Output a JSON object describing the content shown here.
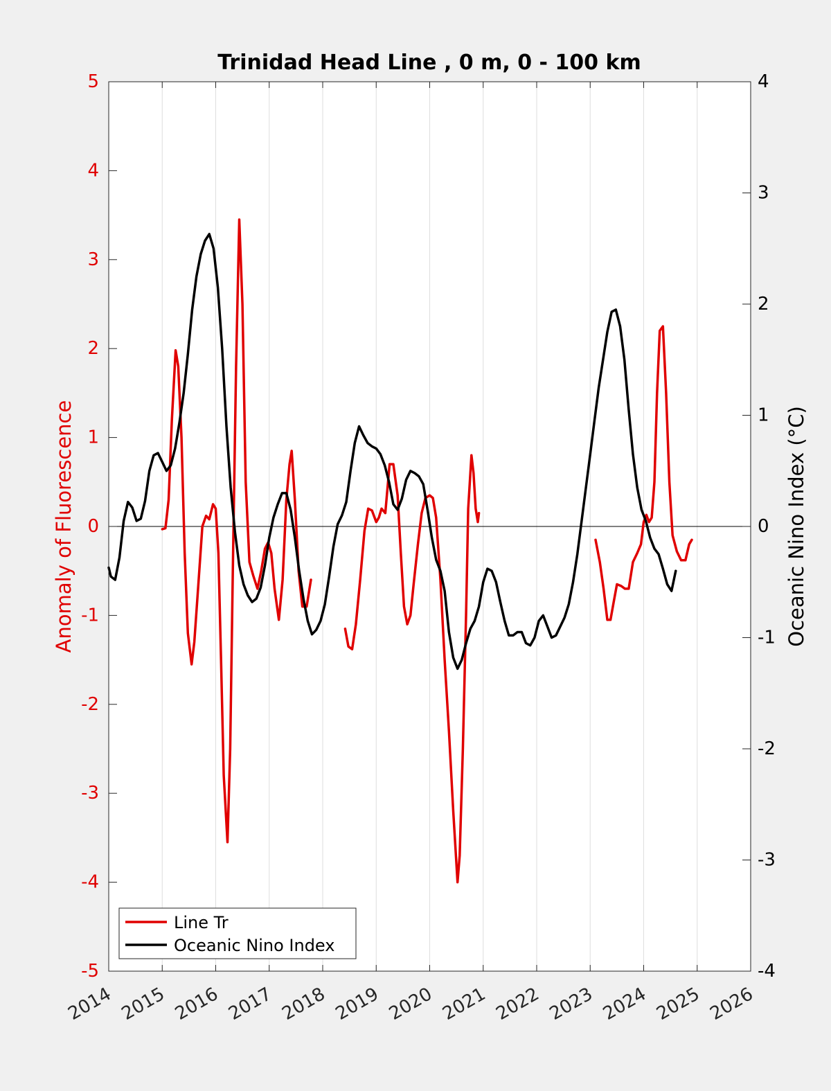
{
  "chart_data": {
    "type": "line",
    "title": "Trinidad Head Line , 0 m, 0 - 100 km",
    "xlabel": "",
    "ylabel_left": "Anomaly of Fluorescence",
    "ylabel_right": "Oceanic Nino Index (°C)",
    "xlim": [
      2014,
      2026
    ],
    "ylim_left": [
      -5,
      5
    ],
    "ylim_right": [
      -4,
      4
    ],
    "x_ticks": [
      "2014",
      "2015",
      "2016",
      "2017",
      "2018",
      "2019",
      "2020",
      "2021",
      "2022",
      "2023",
      "2024",
      "2025",
      "2026"
    ],
    "y_ticks_left": [
      "-5",
      "-4",
      "-3",
      "-2",
      "-1",
      "0",
      "1",
      "2",
      "3",
      "4",
      "5"
    ],
    "y_ticks_right": [
      "-4",
      "-3",
      "-2",
      "-1",
      "0",
      "1",
      "2",
      "3",
      "4"
    ],
    "x_grid": true,
    "zero_line": true,
    "legend": {
      "placement": "bottom-left",
      "entries": [
        "Line Tr",
        "Oceanic Nino Index"
      ]
    },
    "colors": {
      "line_tr": "#e00000",
      "oni": "#000000",
      "left_axis": "#e00000",
      "right_axis": "#000000"
    },
    "series": [
      {
        "name": "Line Tr",
        "axis": "left",
        "segments": [
          [
            [
              2015.0,
              -0.03
            ],
            [
              2015.06,
              -0.02
            ],
            [
              2015.12,
              0.3
            ],
            [
              2015.18,
              1.2
            ],
            [
              2015.25,
              1.98
            ],
            [
              2015.3,
              1.8
            ],
            [
              2015.36,
              1.0
            ],
            [
              2015.42,
              -0.3
            ],
            [
              2015.48,
              -1.2
            ],
            [
              2015.55,
              -1.55
            ],
            [
              2015.6,
              -1.3
            ],
            [
              2015.67,
              -0.7
            ],
            [
              2015.75,
              0.0
            ],
            [
              2015.82,
              0.12
            ],
            [
              2015.88,
              0.08
            ],
            [
              2015.95,
              0.25
            ],
            [
              2016.0,
              0.2
            ],
            [
              2016.05,
              -0.3
            ],
            [
              2016.1,
              -1.5
            ],
            [
              2016.15,
              -2.8
            ],
            [
              2016.22,
              -3.55
            ],
            [
              2016.27,
              -2.5
            ],
            [
              2016.32,
              -0.5
            ],
            [
              2016.38,
              1.8
            ],
            [
              2016.44,
              3.45
            ],
            [
              2016.5,
              2.5
            ],
            [
              2016.56,
              0.5
            ],
            [
              2016.63,
              -0.4
            ],
            [
              2016.7,
              -0.55
            ],
            [
              2016.78,
              -0.7
            ],
            [
              2016.85,
              -0.5
            ],
            [
              2016.92,
              -0.25
            ],
            [
              2016.98,
              -0.18
            ],
            [
              2017.04,
              -0.3
            ],
            [
              2017.1,
              -0.7
            ],
            [
              2017.18,
              -1.05
            ],
            [
              2017.25,
              -0.6
            ],
            [
              2017.32,
              0.3
            ],
            [
              2017.38,
              0.7
            ],
            [
              2017.42,
              0.85
            ],
            [
              2017.48,
              0.3
            ],
            [
              2017.55,
              -0.5
            ],
            [
              2017.62,
              -0.9
            ],
            [
              2017.7,
              -0.9
            ],
            [
              2017.78,
              -0.6
            ]
          ],
          [
            [
              2018.42,
              -1.15
            ],
            [
              2018.48,
              -1.35
            ],
            [
              2018.55,
              -1.38
            ],
            [
              2018.62,
              -1.1
            ],
            [
              2018.7,
              -0.6
            ],
            [
              2018.78,
              -0.05
            ],
            [
              2018.85,
              0.2
            ],
            [
              2018.92,
              0.18
            ],
            [
              2019.0,
              0.05
            ],
            [
              2019.05,
              0.1
            ],
            [
              2019.1,
              0.2
            ],
            [
              2019.17,
              0.15
            ],
            [
              2019.25,
              0.7
            ],
            [
              2019.32,
              0.7
            ],
            [
              2019.4,
              0.35
            ],
            [
              2019.46,
              -0.3
            ],
            [
              2019.52,
              -0.9
            ],
            [
              2019.58,
              -1.1
            ],
            [
              2019.64,
              -1.0
            ],
            [
              2019.7,
              -0.65
            ],
            [
              2019.78,
              -0.2
            ],
            [
              2019.85,
              0.15
            ],
            [
              2019.92,
              0.32
            ],
            [
              2020.0,
              0.35
            ],
            [
              2020.06,
              0.32
            ],
            [
              2020.12,
              0.1
            ],
            [
              2020.2,
              -0.6
            ],
            [
              2020.28,
              -1.5
            ],
            [
              2020.36,
              -2.3
            ],
            [
              2020.44,
              -3.2
            ],
            [
              2020.52,
              -4.0
            ],
            [
              2020.56,
              -3.7
            ],
            [
              2020.62,
              -2.5
            ],
            [
              2020.68,
              -1.0
            ],
            [
              2020.72,
              0.2
            ],
            [
              2020.78,
              0.8
            ],
            [
              2020.82,
              0.6
            ],
            [
              2020.86,
              0.2
            ],
            [
              2020.9,
              0.05
            ],
            [
              2020.92,
              0.15
            ]
          ],
          [
            [
              2023.1,
              -0.15
            ],
            [
              2023.18,
              -0.4
            ],
            [
              2023.25,
              -0.7
            ],
            [
              2023.32,
              -1.05
            ],
            [
              2023.38,
              -1.05
            ],
            [
              2023.44,
              -0.85
            ],
            [
              2023.5,
              -0.65
            ],
            [
              2023.58,
              -0.67
            ],
            [
              2023.65,
              -0.7
            ],
            [
              2023.72,
              -0.7
            ],
            [
              2023.8,
              -0.4
            ],
            [
              2023.88,
              -0.3
            ],
            [
              2023.95,
              -0.2
            ],
            [
              2024.0,
              0.05
            ],
            [
              2024.05,
              0.13
            ],
            [
              2024.1,
              0.05
            ],
            [
              2024.15,
              0.1
            ],
            [
              2024.2,
              0.5
            ],
            [
              2024.25,
              1.5
            ],
            [
              2024.3,
              2.2
            ],
            [
              2024.36,
              2.25
            ],
            [
              2024.42,
              1.5
            ],
            [
              2024.48,
              0.5
            ],
            [
              2024.54,
              -0.1
            ],
            [
              2024.62,
              -0.28
            ],
            [
              2024.7,
              -0.38
            ],
            [
              2024.78,
              -0.38
            ],
            [
              2024.85,
              -0.2
            ],
            [
              2024.9,
              -0.15
            ]
          ]
        ]
      },
      {
        "name": "Oceanic Nino Index",
        "axis": "right",
        "segments": [
          [
            [
              2014.0,
              -0.37
            ],
            [
              2014.04,
              -0.45
            ],
            [
              2014.12,
              -0.48
            ],
            [
              2014.2,
              -0.28
            ],
            [
              2014.28,
              0.05
            ],
            [
              2014.36,
              0.22
            ],
            [
              2014.44,
              0.17
            ],
            [
              2014.52,
              0.05
            ],
            [
              2014.6,
              0.07
            ],
            [
              2014.68,
              0.23
            ],
            [
              2014.76,
              0.5
            ],
            [
              2014.84,
              0.64
            ],
            [
              2014.92,
              0.66
            ],
            [
              2015.0,
              0.58
            ],
            [
              2015.08,
              0.5
            ],
            [
              2015.16,
              0.55
            ],
            [
              2015.24,
              0.7
            ],
            [
              2015.32,
              0.93
            ],
            [
              2015.4,
              1.2
            ],
            [
              2015.48,
              1.55
            ],
            [
              2015.56,
              1.95
            ],
            [
              2015.64,
              2.25
            ],
            [
              2015.72,
              2.45
            ],
            [
              2015.8,
              2.57
            ],
            [
              2015.88,
              2.63
            ],
            [
              2015.96,
              2.5
            ],
            [
              2016.04,
              2.15
            ],
            [
              2016.12,
              1.6
            ],
            [
              2016.2,
              0.9
            ],
            [
              2016.28,
              0.35
            ],
            [
              2016.36,
              -0.05
            ],
            [
              2016.44,
              -0.35
            ],
            [
              2016.52,
              -0.52
            ],
            [
              2016.6,
              -0.62
            ],
            [
              2016.68,
              -0.68
            ],
            [
              2016.76,
              -0.65
            ],
            [
              2016.84,
              -0.55
            ],
            [
              2016.92,
              -0.35
            ],
            [
              2017.0,
              -0.1
            ],
            [
              2017.08,
              0.08
            ],
            [
              2017.16,
              0.2
            ],
            [
              2017.24,
              0.3
            ],
            [
              2017.32,
              0.3
            ],
            [
              2017.4,
              0.15
            ],
            [
              2017.48,
              -0.1
            ],
            [
              2017.56,
              -0.4
            ],
            [
              2017.64,
              -0.65
            ],
            [
              2017.72,
              -0.85
            ],
            [
              2017.8,
              -0.97
            ],
            [
              2017.88,
              -0.93
            ],
            [
              2017.96,
              -0.85
            ],
            [
              2018.04,
              -0.7
            ],
            [
              2018.12,
              -0.45
            ],
            [
              2018.2,
              -0.18
            ],
            [
              2018.28,
              0.02
            ],
            [
              2018.36,
              0.1
            ],
            [
              2018.44,
              0.22
            ],
            [
              2018.52,
              0.5
            ],
            [
              2018.6,
              0.75
            ],
            [
              2018.68,
              0.9
            ],
            [
              2018.76,
              0.82
            ],
            [
              2018.84,
              0.75
            ],
            [
              2018.92,
              0.72
            ],
            [
              2019.0,
              0.7
            ],
            [
              2019.08,
              0.65
            ],
            [
              2019.16,
              0.55
            ],
            [
              2019.24,
              0.4
            ],
            [
              2019.32,
              0.2
            ],
            [
              2019.4,
              0.15
            ],
            [
              2019.48,
              0.25
            ],
            [
              2019.56,
              0.42
            ],
            [
              2019.64,
              0.5
            ],
            [
              2019.72,
              0.48
            ],
            [
              2019.8,
              0.45
            ],
            [
              2019.88,
              0.38
            ],
            [
              2019.96,
              0.15
            ],
            [
              2020.04,
              -0.1
            ],
            [
              2020.12,
              -0.3
            ],
            [
              2020.2,
              -0.4
            ],
            [
              2020.28,
              -0.58
            ],
            [
              2020.36,
              -0.95
            ],
            [
              2020.44,
              -1.18
            ],
            [
              2020.52,
              -1.28
            ],
            [
              2020.6,
              -1.2
            ],
            [
              2020.68,
              -1.05
            ],
            [
              2020.76,
              -0.92
            ],
            [
              2020.84,
              -0.85
            ],
            [
              2020.92,
              -0.72
            ],
            [
              2021.0,
              -0.5
            ],
            [
              2021.08,
              -0.38
            ],
            [
              2021.16,
              -0.4
            ],
            [
              2021.24,
              -0.5
            ],
            [
              2021.32,
              -0.68
            ],
            [
              2021.4,
              -0.85
            ],
            [
              2021.48,
              -0.98
            ],
            [
              2021.56,
              -0.98
            ],
            [
              2021.64,
              -0.95
            ],
            [
              2021.72,
              -0.95
            ],
            [
              2021.8,
              -1.05
            ],
            [
              2021.88,
              -1.07
            ],
            [
              2021.96,
              -1.0
            ],
            [
              2022.04,
              -0.85
            ],
            [
              2022.12,
              -0.8
            ],
            [
              2022.2,
              -0.9
            ],
            [
              2022.28,
              -1.0
            ],
            [
              2022.36,
              -0.98
            ],
            [
              2022.44,
              -0.9
            ],
            [
              2022.52,
              -0.82
            ],
            [
              2022.6,
              -0.7
            ],
            [
              2022.68,
              -0.5
            ],
            [
              2022.76,
              -0.25
            ],
            [
              2022.84,
              0.05
            ],
            [
              2022.92,
              0.35
            ],
            [
              2023.0,
              0.65
            ],
            [
              2023.08,
              0.95
            ],
            [
              2023.16,
              1.25
            ],
            [
              2023.24,
              1.5
            ],
            [
              2023.32,
              1.75
            ],
            [
              2023.4,
              1.93
            ],
            [
              2023.48,
              1.95
            ],
            [
              2023.56,
              1.8
            ],
            [
              2023.64,
              1.5
            ],
            [
              2023.72,
              1.05
            ],
            [
              2023.8,
              0.65
            ],
            [
              2023.88,
              0.35
            ],
            [
              2023.96,
              0.15
            ],
            [
              2024.04,
              0.05
            ],
            [
              2024.12,
              -0.1
            ],
            [
              2024.2,
              -0.2
            ],
            [
              2024.28,
              -0.25
            ],
            [
              2024.36,
              -0.38
            ],
            [
              2024.44,
              -0.52
            ],
            [
              2024.52,
              -0.58
            ],
            [
              2024.6,
              -0.4
            ]
          ]
        ]
      }
    ]
  }
}
